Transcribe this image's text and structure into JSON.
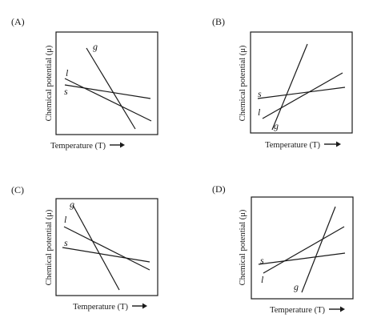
{
  "figure": {
    "axis_x_label": "Temperature (T)",
    "axis_y_label": "Chemical potential (μ)",
    "panels": [
      {
        "id": "A",
        "label": "(A)",
        "lines": [
          {
            "name": "g",
            "description": "steepest negative slope"
          },
          {
            "name": "l",
            "description": "moderate negative slope"
          },
          {
            "name": "s",
            "description": "shallow negative slope"
          }
        ]
      },
      {
        "id": "B",
        "label": "(B)",
        "lines": [
          {
            "name": "g",
            "description": "steepest positive slope"
          },
          {
            "name": "l",
            "description": "moderate positive slope"
          },
          {
            "name": "s",
            "description": "shallow positive slope"
          }
        ]
      },
      {
        "id": "C",
        "label": "(C)",
        "lines": [
          {
            "name": "g",
            "description": "steepest negative slope"
          },
          {
            "name": "l",
            "description": "moderate negative slope"
          },
          {
            "name": "s",
            "description": "shallow negative slope"
          }
        ]
      },
      {
        "id": "D",
        "label": "(D)",
        "lines": [
          {
            "name": "g",
            "description": "steepest positive slope"
          },
          {
            "name": "l",
            "description": "moderate positive slope"
          },
          {
            "name": "s",
            "description": "shallow positive slope"
          }
        ]
      }
    ]
  }
}
